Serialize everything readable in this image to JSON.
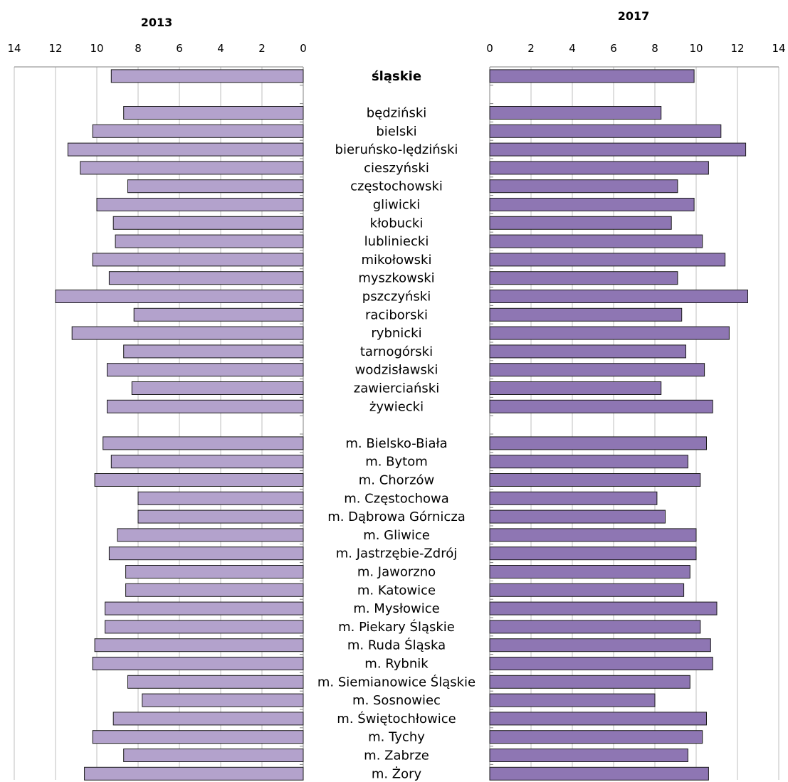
{
  "chart_data": {
    "type": "bar",
    "orientation": "horizontal-butterfly",
    "xlim": [
      0,
      14
    ],
    "xticks": [
      0,
      2,
      4,
      6,
      8,
      10,
      12,
      14
    ],
    "grid": true,
    "colors": {
      "left": "#b3a2cc",
      "right": "#8e76b3"
    },
    "categories": [
      "śląskie",
      "",
      "będziński",
      "bielski",
      "bieruńsko-lędziński",
      "cieszyński",
      "częstochowski",
      "gliwicki",
      "kłobucki",
      "lubliniecki",
      "mikołowski",
      "myszkowski",
      "pszczyński",
      "raciborski",
      "rybnicki",
      "tarnogórski",
      "wodzisławski",
      "zawierciański",
      "żywiecki",
      "",
      "m. Bielsko-Biała",
      "m. Bytom",
      "m. Chorzów",
      "m. Częstochowa",
      "m. Dąbrowa Górnicza",
      "m. Gliwice",
      "m. Jastrzębie-Zdrój",
      "m. Jaworzno",
      "m. Katowice",
      "m. Mysłowice",
      "m. Piekary Śląskie",
      "m. Ruda Śląska",
      "m. Rybnik",
      "m. Siemianowice Śląskie",
      "m. Sosnowiec",
      "m. Świętochłowice",
      "m. Tychy",
      "m. Zabrze",
      "m. Żory"
    ],
    "bold_categories": [
      "śląskie"
    ],
    "series": [
      {
        "name": "2013",
        "values": [
          9.3,
          null,
          8.7,
          10.2,
          11.4,
          10.8,
          8.5,
          10.0,
          9.2,
          9.1,
          10.2,
          9.4,
          12.0,
          8.2,
          11.2,
          8.7,
          9.5,
          8.3,
          9.5,
          null,
          9.7,
          9.3,
          10.1,
          8.0,
          8.0,
          9.0,
          9.4,
          8.6,
          8.6,
          9.6,
          9.6,
          10.1,
          10.2,
          8.5,
          7.8,
          9.2,
          10.2,
          8.7,
          10.6
        ]
      },
      {
        "name": "2017",
        "values": [
          9.9,
          null,
          8.3,
          11.2,
          12.4,
          10.6,
          9.1,
          9.9,
          8.8,
          10.3,
          11.4,
          9.1,
          12.5,
          9.3,
          11.6,
          9.5,
          10.4,
          8.3,
          10.8,
          null,
          10.5,
          9.6,
          10.2,
          8.1,
          8.5,
          10.0,
          10.0,
          9.7,
          9.4,
          11.0,
          10.2,
          10.7,
          10.8,
          9.7,
          8.0,
          10.5,
          10.3,
          9.6,
          10.6
        ]
      }
    ]
  }
}
